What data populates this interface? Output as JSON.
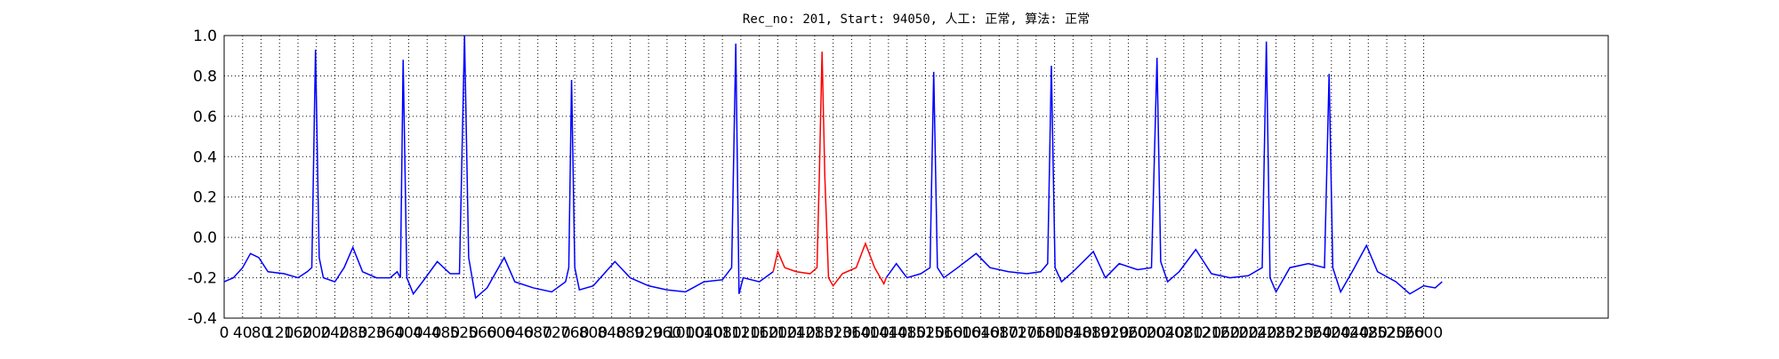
{
  "chart_data": {
    "type": "line",
    "title": "Rec_no: 201, Start: 94050, 人工: 正常, 算法: 正常",
    "xlim": [
      0,
      3000
    ],
    "xticks": [
      0,
      40,
      80,
      120,
      160,
      200,
      240,
      280,
      320,
      360,
      400,
      440,
      480,
      520,
      560,
      600,
      640,
      680,
      720,
      760,
      800,
      840,
      880,
      920,
      960,
      1000,
      1040,
      1080,
      1120,
      1160,
      1200,
      1240,
      1280,
      1320,
      1360,
      1400,
      1440,
      1480,
      1520,
      1560,
      1600,
      1640,
      1680,
      1720,
      1760,
      1800,
      1840,
      1880,
      1920,
      1960,
      2000,
      2040,
      2080,
      2120,
      2160,
      2200,
      2240,
      2280,
      2320,
      2360,
      2400,
      2440,
      2480,
      2520,
      2560,
      2600
    ],
    "ylim": [
      -0.4,
      1.0
    ],
    "yticks": [
      -0.4,
      -0.2,
      {
        "value": 0,
        "label": "0.0"
      },
      0.2,
      0.4,
      0.6,
      0.8,
      {
        "value": 1,
        "label": "1.0"
      }
    ],
    "grid": true,
    "series": [
      {
        "color": "#0000ff",
        "x": [
          0,
          20,
          40,
          57,
          75,
          95,
          130,
          160,
          180,
          190,
          198,
          206,
          215,
          240,
          260,
          279,
          300,
          330,
          360,
          375,
          382,
          388,
          396,
          410,
          430,
          462,
          490,
          510,
          521,
          530,
          545,
          570,
          607,
          630,
          670,
          710,
          740,
          747,
          753,
          760,
          770,
          800,
          847,
          880,
          920,
          960,
          1000,
          1040,
          1080,
          1100,
          1109,
          1116,
          1125,
          1160,
          1190,
          1300,
          1435,
          1457,
          1480,
          1510,
          1530,
          1538,
          1546,
          1560,
          1590,
          1630,
          1660,
          1700,
          1740,
          1770,
          1785,
          1793,
          1801,
          1815,
          1840,
          1884,
          1910,
          1940,
          1980,
          2010,
          2022,
          2030,
          2045,
          2070,
          2106,
          2140,
          2180,
          2220,
          2250,
          2259,
          2267,
          2280,
          2310,
          2350,
          2385,
          2395,
          2403,
          2420,
          2450,
          2476,
          2500,
          2540,
          2570,
          2600,
          2625,
          2640
        ],
        "values": [
          -0.22,
          -0.2,
          -0.15,
          -0.08,
          -0.1,
          -0.17,
          -0.18,
          -0.2,
          -0.17,
          -0.15,
          0.93,
          -0.1,
          -0.2,
          -0.22,
          -0.15,
          -0.05,
          -0.17,
          -0.2,
          -0.2,
          -0.17,
          -0.2,
          0.88,
          -0.2,
          -0.28,
          -0.22,
          -0.12,
          -0.18,
          -0.18,
          1.0,
          -0.1,
          -0.3,
          -0.25,
          -0.1,
          -0.22,
          -0.25,
          -0.27,
          -0.22,
          -0.15,
          0.78,
          -0.15,
          -0.26,
          -0.24,
          -0.12,
          -0.2,
          -0.24,
          -0.26,
          -0.27,
          -0.22,
          -0.21,
          -0.15,
          0.96,
          -0.28,
          -0.2,
          -0.22,
          -0.17,
          null,
          -0.2,
          -0.13,
          -0.2,
          -0.18,
          -0.15,
          0.82,
          -0.15,
          -0.2,
          -0.15,
          -0.08,
          -0.15,
          -0.17,
          -0.18,
          -0.17,
          -0.13,
          0.85,
          -0.15,
          -0.22,
          -0.17,
          -0.07,
          -0.2,
          -0.13,
          -0.16,
          -0.15,
          0.89,
          -0.12,
          -0.22,
          -0.17,
          -0.06,
          -0.18,
          -0.2,
          -0.19,
          -0.15,
          0.97,
          -0.2,
          -0.27,
          -0.15,
          -0.13,
          -0.15,
          0.81,
          -0.15,
          -0.27,
          -0.15,
          -0.04,
          -0.17,
          -0.22,
          -0.28,
          -0.24,
          -0.25,
          -0.22
        ]
      },
      {
        "color": "#ff0000",
        "x": [
          1190,
          1200,
          1215,
          1240,
          1270,
          1285,
          1290,
          1296,
          1302,
          1310,
          1320,
          1340,
          1370,
          1390,
          1410,
          1430,
          1435
        ],
        "values": [
          -0.17,
          -0.07,
          -0.15,
          -0.17,
          -0.18,
          -0.15,
          0.3,
          0.92,
          0.3,
          -0.2,
          -0.24,
          -0.18,
          -0.15,
          -0.03,
          -0.15,
          -0.23,
          -0.2
        ]
      }
    ]
  }
}
